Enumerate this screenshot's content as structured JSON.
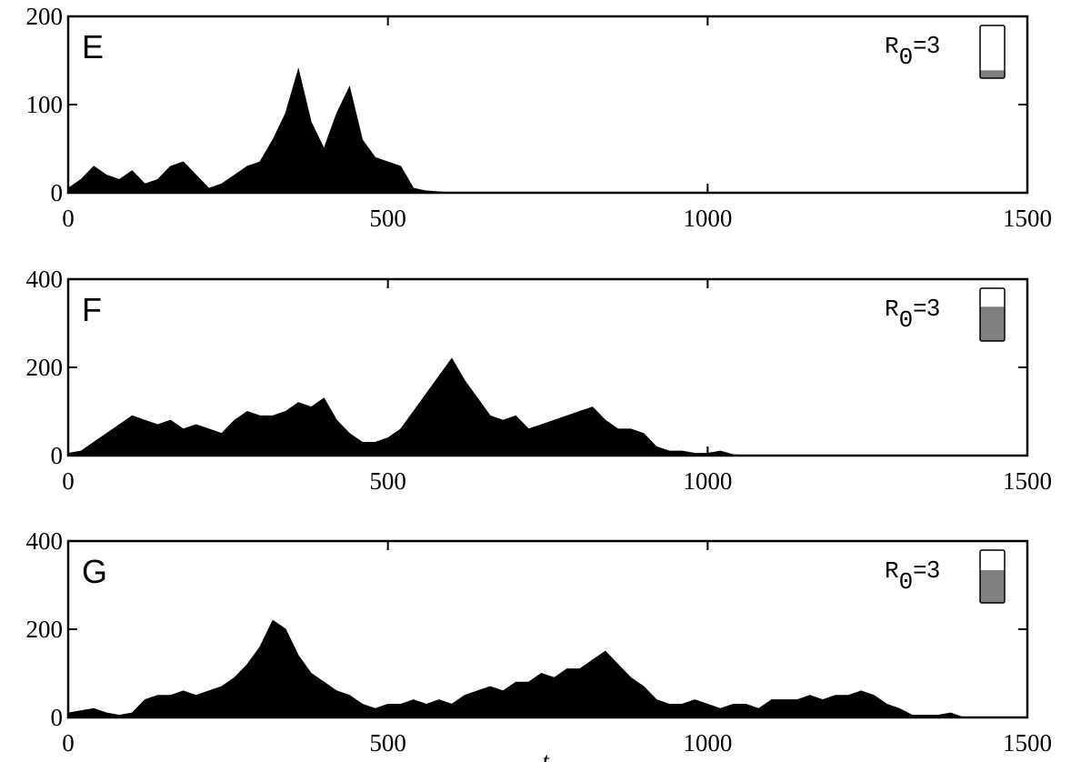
{
  "chart_data": [
    {
      "type": "area",
      "panel_label": "E",
      "annotation": {
        "symbol": "R",
        "subscript": "0",
        "value": "=3"
      },
      "gauge_fraction": 0.15,
      "color": "#000000",
      "gauge_color": "#808080",
      "xlim": [
        0,
        1500
      ],
      "xticks": [
        0,
        500,
        1000,
        1500
      ],
      "ylim": [
        0,
        200
      ],
      "yticks": [
        0,
        100,
        200
      ],
      "x": [
        0,
        20,
        40,
        60,
        80,
        100,
        120,
        140,
        160,
        180,
        200,
        220,
        240,
        260,
        280,
        300,
        320,
        340,
        360,
        380,
        400,
        420,
        440,
        460,
        480,
        500,
        520,
        540,
        560,
        580,
        600,
        620,
        640,
        660,
        680,
        700,
        720,
        740,
        760,
        780,
        800,
        820,
        840,
        860,
        880,
        900,
        920,
        940,
        960,
        980,
        1000,
        1020,
        1040,
        1060,
        1080,
        1100,
        1120,
        1140,
        1160,
        1180,
        1200,
        1220,
        1240,
        1260,
        1280,
        1300,
        1320,
        1340,
        1360,
        1380,
        1400,
        1420,
        1440,
        1460,
        1480,
        1500
      ],
      "values": [
        5,
        15,
        30,
        20,
        15,
        25,
        10,
        15,
        30,
        35,
        20,
        5,
        10,
        20,
        30,
        35,
        60,
        90,
        140,
        80,
        50,
        90,
        120,
        60,
        40,
        35,
        30,
        5,
        2,
        1,
        0,
        0,
        0,
        0,
        0,
        0,
        0,
        0,
        0,
        0,
        0,
        0,
        0,
        0,
        0,
        0,
        0,
        0,
        0,
        0,
        0,
        0,
        0,
        0,
        0,
        0,
        0,
        0,
        0,
        0,
        0,
        0,
        0,
        0,
        0,
        0,
        0,
        0,
        0,
        0,
        0,
        0,
        0,
        0,
        0,
        0
      ]
    },
    {
      "type": "area",
      "panel_label": "F",
      "annotation": {
        "symbol": "R",
        "subscript": "0",
        "value": "=3"
      },
      "gauge_fraction": 0.65,
      "color": "#000000",
      "gauge_color": "#808080",
      "xlim": [
        0,
        1500
      ],
      "xticks": [
        0,
        500,
        1000,
        1500
      ],
      "ylim": [
        0,
        400
      ],
      "yticks": [
        0,
        200,
        400
      ],
      "x": [
        0,
        20,
        40,
        60,
        80,
        100,
        120,
        140,
        160,
        180,
        200,
        220,
        240,
        260,
        280,
        300,
        320,
        340,
        360,
        380,
        400,
        420,
        440,
        460,
        480,
        500,
        520,
        540,
        560,
        580,
        600,
        620,
        640,
        660,
        680,
        700,
        720,
        740,
        760,
        780,
        800,
        820,
        840,
        860,
        880,
        900,
        920,
        940,
        960,
        980,
        1000,
        1020,
        1040,
        1060,
        1080,
        1100,
        1120,
        1140,
        1160,
        1180,
        1200,
        1220,
        1240,
        1260,
        1280,
        1300,
        1320,
        1340,
        1360,
        1380,
        1400,
        1420,
        1440,
        1460,
        1480,
        1500
      ],
      "values": [
        5,
        10,
        30,
        50,
        70,
        90,
        80,
        70,
        80,
        60,
        70,
        60,
        50,
        80,
        100,
        90,
        90,
        100,
        120,
        110,
        130,
        80,
        50,
        30,
        30,
        40,
        60,
        100,
        140,
        180,
        220,
        170,
        130,
        90,
        80,
        90,
        60,
        70,
        80,
        90,
        100,
        110,
        80,
        60,
        60,
        50,
        20,
        10,
        10,
        5,
        5,
        10,
        2,
        0,
        0,
        0,
        0,
        0,
        0,
        0,
        0,
        0,
        0,
        0,
        0,
        0,
        0,
        0,
        0,
        0,
        0,
        0,
        0,
        0,
        0,
        0
      ]
    },
    {
      "type": "area",
      "panel_label": "G",
      "annotation": {
        "symbol": "R",
        "subscript": "0",
        "value": "=3"
      },
      "gauge_fraction": 0.62,
      "color": "#000000",
      "gauge_color": "#808080",
      "xlabel": "t",
      "xlim": [
        0,
        1500
      ],
      "xticks": [
        0,
        500,
        1000,
        1500
      ],
      "ylim": [
        0,
        400
      ],
      "yticks": [
        0,
        200,
        400
      ],
      "x": [
        0,
        20,
        40,
        60,
        80,
        100,
        120,
        140,
        160,
        180,
        200,
        220,
        240,
        260,
        280,
        300,
        320,
        340,
        360,
        380,
        400,
        420,
        440,
        460,
        480,
        500,
        520,
        540,
        560,
        580,
        600,
        620,
        640,
        660,
        680,
        700,
        720,
        740,
        760,
        780,
        800,
        820,
        840,
        860,
        880,
        900,
        920,
        940,
        960,
        980,
        1000,
        1020,
        1040,
        1060,
        1080,
        1100,
        1120,
        1140,
        1160,
        1180,
        1200,
        1220,
        1240,
        1260,
        1280,
        1300,
        1320,
        1340,
        1360,
        1380,
        1400,
        1420,
        1440,
        1460,
        1480,
        1500
      ],
      "values": [
        10,
        15,
        20,
        10,
        5,
        10,
        40,
        50,
        50,
        60,
        50,
        60,
        70,
        90,
        120,
        160,
        220,
        200,
        140,
        100,
        80,
        60,
        50,
        30,
        20,
        30,
        30,
        40,
        30,
        40,
        30,
        50,
        60,
        70,
        60,
        80,
        80,
        100,
        90,
        110,
        110,
        130,
        150,
        120,
        90,
        70,
        40,
        30,
        30,
        40,
        30,
        20,
        30,
        30,
        20,
        40,
        40,
        40,
        50,
        40,
        50,
        50,
        60,
        50,
        30,
        20,
        5,
        5,
        5,
        10,
        0,
        0,
        0,
        0,
        0,
        0
      ]
    }
  ]
}
